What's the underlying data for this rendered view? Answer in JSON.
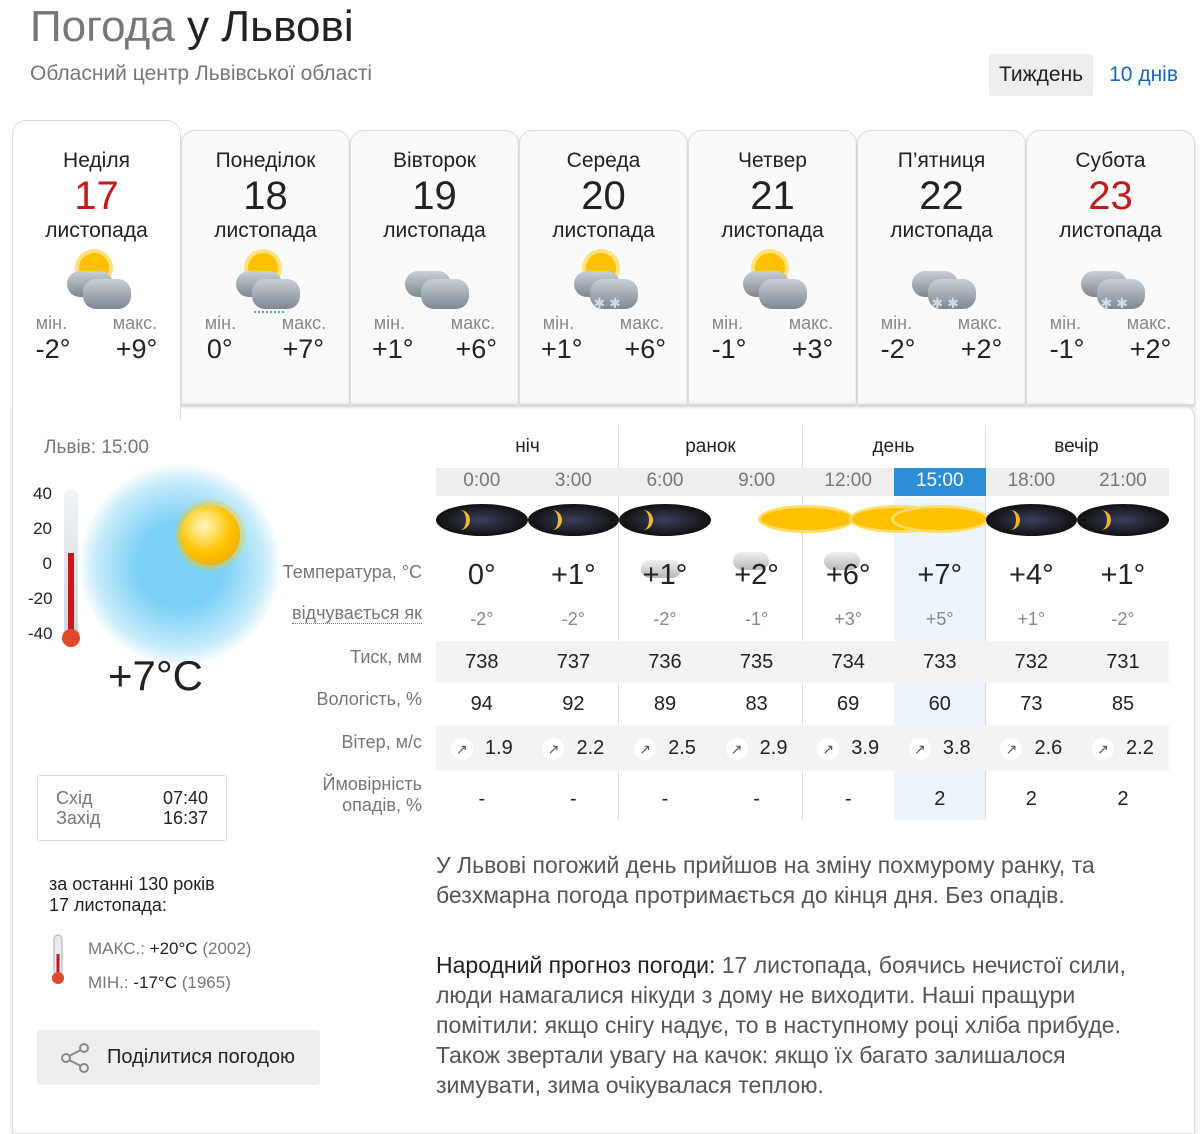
{
  "header": {
    "title_prefix": "Погода",
    "title_city": "у Львові",
    "subtitle": "Обласний центр Львівської області",
    "period_week": "Тиждень",
    "period_10days": "10 днів"
  },
  "days": [
    {
      "name": "Неділя",
      "date": "17",
      "month": "листопада",
      "icon": "partly-cloudy-sun-icon",
      "min_label": "мін.",
      "max_label": "макс.",
      "min": "-2°",
      "max": "+9°",
      "holiday": true
    },
    {
      "name": "Понеділок",
      "date": "18",
      "month": "листопада",
      "icon": "partly-cloudy-sun-rain-icon",
      "min_label": "мін.",
      "max_label": "макс.",
      "min": "0°",
      "max": "+7°",
      "holiday": false
    },
    {
      "name": "Вівторок",
      "date": "19",
      "month": "листопада",
      "icon": "overcast-icon",
      "min_label": "мін.",
      "max_label": "макс.",
      "min": "+1°",
      "max": "+6°",
      "holiday": false
    },
    {
      "name": "Середа",
      "date": "20",
      "month": "листопада",
      "icon": "sun-cloud-snow-icon",
      "min_label": "мін.",
      "max_label": "макс.",
      "min": "+1°",
      "max": "+6°",
      "holiday": false
    },
    {
      "name": "Четвер",
      "date": "21",
      "month": "листопада",
      "icon": "partly-cloudy-sun-icon",
      "min_label": "мін.",
      "max_label": "макс.",
      "min": "-1°",
      "max": "+3°",
      "holiday": false
    },
    {
      "name": "П’ятниця",
      "date": "22",
      "month": "листопада",
      "icon": "cloud-snow-icon",
      "min_label": "мін.",
      "max_label": "макс.",
      "min": "-2°",
      "max": "+2°",
      "holiday": false
    },
    {
      "name": "Субота",
      "date": "23",
      "month": "листопада",
      "icon": "cloud-snow-icon",
      "min_label": "мін.",
      "max_label": "макс.",
      "min": "-1°",
      "max": "+2°",
      "holiday": true
    }
  ],
  "now": {
    "label": "Львів: 15:00",
    "temp": "+7°C",
    "temp_value": 7,
    "scale": [
      "40",
      "20",
      "0",
      "-20",
      "-40"
    ],
    "sunrise_label": "Схід",
    "sunrise": "07:40",
    "sunset_label": "Захід",
    "sunset": "16:37"
  },
  "history": {
    "line1": "за останні 130 років",
    "line2": "17 листопада:",
    "max_label": "МАКС.:",
    "max": "+20°C",
    "max_year": "(2002)",
    "min_label": "МІН.:",
    "min": "-17°C",
    "min_year": "(1965)"
  },
  "share_label": "Поділитися погодою",
  "row_labels": {
    "temp": "Температура, °C",
    "feels": "відчувається як",
    "pressure": "Тиск, мм",
    "humidity": "Вологість, %",
    "wind": "Вітер, м/с",
    "precip1": "Ймовірність",
    "precip2": "опадів, %"
  },
  "periods": [
    "ніч",
    "ранок",
    "день",
    "вечір"
  ],
  "hours": [
    {
      "time": "0:00",
      "icon": "clear-night-icon",
      "temp": "0°",
      "feels": "-2°",
      "pressure": "738",
      "humidity": "94",
      "wind": "1.9",
      "precip": "-"
    },
    {
      "time": "3:00",
      "icon": "clear-night-icon",
      "temp": "+1°",
      "feels": "-2°",
      "pressure": "737",
      "humidity": "92",
      "wind": "2.2",
      "precip": "-"
    },
    {
      "time": "6:00",
      "icon": "cloudy-night-icon",
      "temp": "+1°",
      "feels": "-2°",
      "pressure": "736",
      "humidity": "89",
      "wind": "2.5",
      "precip": "-"
    },
    {
      "time": "9:00",
      "icon": "partly-cloudy-sun-icon",
      "temp": "+2°",
      "feels": "-1°",
      "pressure": "735",
      "humidity": "83",
      "wind": "2.9",
      "precip": "-"
    },
    {
      "time": "12:00",
      "icon": "partly-cloudy-sun-icon",
      "temp": "+6°",
      "feels": "+3°",
      "pressure": "734",
      "humidity": "69",
      "wind": "3.9",
      "precip": "-"
    },
    {
      "time": "15:00",
      "icon": "sun-icon",
      "temp": "+7°",
      "feels": "+5°",
      "pressure": "733",
      "humidity": "60",
      "wind": "3.8",
      "precip": "2",
      "selected": true
    },
    {
      "time": "18:00",
      "icon": "clear-night-icon",
      "temp": "+4°",
      "feels": "+1°",
      "pressure": "732",
      "humidity": "73",
      "wind": "2.6",
      "precip": "2"
    },
    {
      "time": "21:00",
      "icon": "clear-night-icon",
      "temp": "+1°",
      "feels": "-2°",
      "pressure": "731",
      "humidity": "85",
      "wind": "2.2",
      "precip": "2"
    }
  ],
  "description": "У Львові погожий день прийшов на зміну похмурому ранку, та безхмарна погода протримається до кінця дня. Без опадів.",
  "folk": {
    "label": "Народний прогноз погоди:",
    "text": " 17 листопада, боячись нечистої сили, люди намагалися нікуди з дому не виходити. Наші пращури помітили: якщо снігу надує, то в наступному році хліба прибуде. Також звертали увагу на качок: якщо їх багато залишалося зимувати, зима очікувалася теплою."
  },
  "colors": {
    "accent": "#2d8ed8",
    "holiday": "#c41a1a",
    "link": "#1a62c4"
  }
}
